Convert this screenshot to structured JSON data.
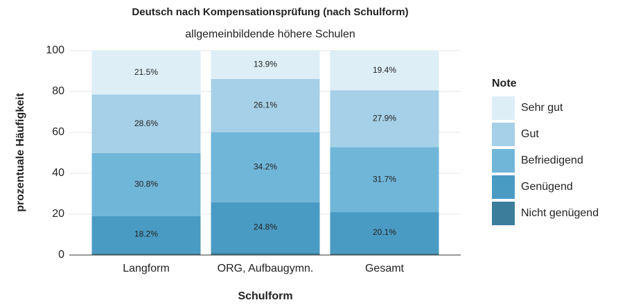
{
  "chart_data": {
    "type": "stacked_bar",
    "title": "Deutsch nach Kompensationsprüfung (nach Schulform)",
    "subtitle": "allgemeinbildende höhere Schulen",
    "x_label": "Schulform",
    "y_label": "prozentuale Häufigkeit",
    "legend_title": "Note",
    "legend_position": "right",
    "grid": true,
    "categories": [
      "Langform",
      "ORG, Aufbaugymn.",
      "Gesamt"
    ],
    "ylim": [
      0,
      100
    ],
    "yticks": [
      0,
      20,
      40,
      60,
      80,
      100
    ],
    "series": [
      {
        "name": "Nicht genügend",
        "color": "#3d7d9c",
        "values": [
          0.9,
          1.0,
          0.9
        ]
      },
      {
        "name": "Genügend",
        "color": "#4a9bc4",
        "values": [
          18.2,
          24.8,
          20.1
        ],
        "value_labels": [
          "18.2%",
          "24.8%",
          "20.1%"
        ]
      },
      {
        "name": "Befriedigend",
        "color": "#70b6d9",
        "values": [
          30.8,
          34.2,
          31.7
        ],
        "value_labels": [
          "30.8%",
          "34.2%",
          "31.7%"
        ]
      },
      {
        "name": "Gut",
        "color": "#a5d0e7",
        "values": [
          28.6,
          26.1,
          27.9
        ],
        "value_labels": [
          "28.6%",
          "26.1%",
          "27.9%"
        ]
      },
      {
        "name": "Sehr gut",
        "color": "#ddeef7",
        "values": [
          21.5,
          13.9,
          19.4
        ],
        "value_labels": [
          "21.5%",
          "13.9%",
          "19.4%"
        ]
      }
    ]
  }
}
